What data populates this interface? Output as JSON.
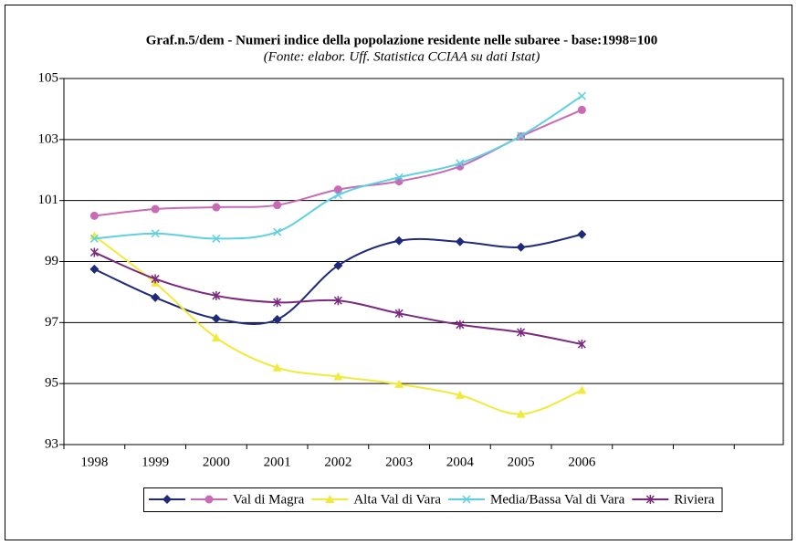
{
  "chart_data": {
    "type": "line",
    "title": "Graf.n.5/dem - Numeri indice della popolazione residente nelle subaree - base:1998=100",
    "subtitle": "(Fonte: elabor. Uff. Statistica CCIAA su dati Istat)",
    "categories": [
      "1998",
      "1999",
      "2000",
      "2001",
      "2002",
      "2003",
      "2004",
      "2005",
      "2006"
    ],
    "ylim": [
      93,
      105
    ],
    "yticks": [
      93,
      95,
      97,
      99,
      101,
      103,
      105
    ],
    "grid": true,
    "smooth": true,
    "legend": "bottom",
    "series": [
      {
        "name": null,
        "color": "#1f2a7a",
        "marker": "diamond",
        "values": [
          98.75,
          97.82,
          97.13,
          97.1,
          98.87,
          99.68,
          99.65,
          99.47,
          99.89
        ]
      },
      {
        "name": "Val di Magra",
        "color": "#c86ab4",
        "marker": "circle",
        "values": [
          100.5,
          100.72,
          100.78,
          100.85,
          101.36,
          101.63,
          102.12,
          103.1,
          103.97
        ]
      },
      {
        "name": "Alta Val di Vara",
        "color": "#f2ea3a",
        "marker": "triangle",
        "values": [
          99.84,
          98.3,
          96.5,
          95.52,
          95.23,
          94.98,
          94.62,
          94.0,
          94.78
        ]
      },
      {
        "name": "Media/Bassa Val di Vara",
        "color": "#5fd0e0",
        "marker": "x",
        "values": [
          99.75,
          99.92,
          99.75,
          99.97,
          101.18,
          101.76,
          102.22,
          103.12,
          104.43
        ]
      },
      {
        "name": "Riviera",
        "color": "#7a2a7e",
        "marker": "star",
        "values": [
          99.3,
          98.43,
          97.88,
          97.66,
          97.72,
          97.3,
          96.93,
          96.68,
          96.29
        ]
      }
    ]
  }
}
